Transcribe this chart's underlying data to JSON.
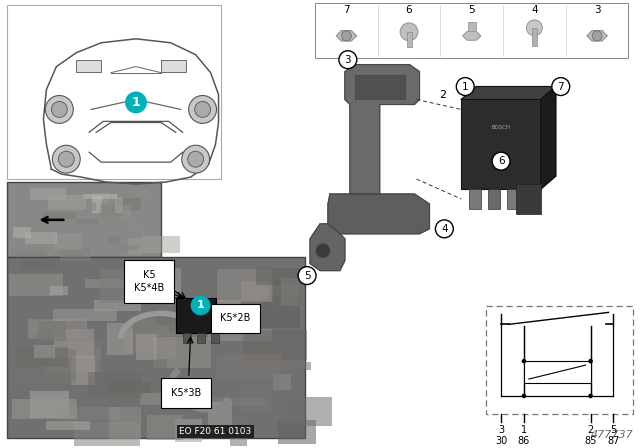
{
  "bg": "#ffffff",
  "teal": "#00b0b9",
  "gray_photo": "#8a8a8a",
  "gray_thumb": "#787878",
  "dark_relay": "#3a3a3c",
  "med_bracket": "#6e6e6e",
  "light_bracket": "#909090",
  "eo_number": "EO F20 61 0103",
  "doc_number": "477737",
  "connector_labels": [
    [
      "K5",
      "K5*4B"
    ],
    [
      "K5*2B"
    ],
    [
      "K5*3B"
    ]
  ],
  "fastener_seq": [
    "7",
    "6",
    "5",
    "4",
    "3"
  ],
  "circuit_pins_top": [
    "3",
    "1",
    "2",
    "5"
  ],
  "circuit_pins_bot": [
    "30",
    "86",
    "85",
    "87"
  ],
  "part_circles": [
    "1",
    "2",
    "3",
    "4",
    "5",
    "6",
    "7"
  ]
}
